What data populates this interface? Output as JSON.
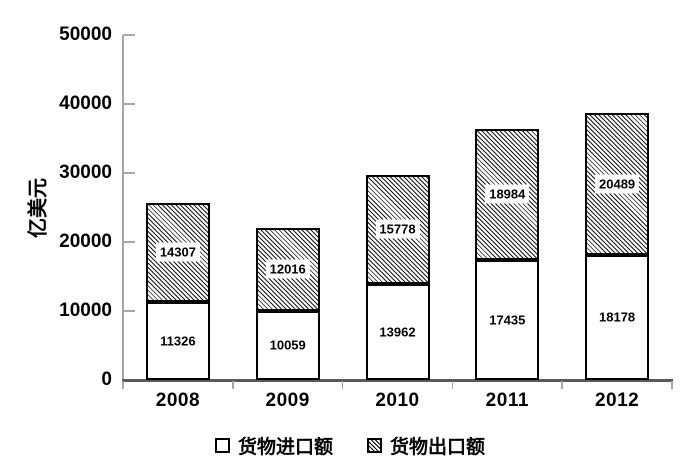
{
  "chart_data": {
    "type": "bar",
    "stacked": true,
    "title": "",
    "ylabel": "亿美元",
    "xlabel": "",
    "categories": [
      "2008",
      "2009",
      "2010",
      "2011",
      "2012"
    ],
    "series": [
      {
        "name": "货物进口额",
        "pattern": "solid-white",
        "values": [
          11326,
          10059,
          13962,
          17435,
          18178
        ]
      },
      {
        "name": "货物出口额",
        "pattern": "diagonal-hatch",
        "values": [
          14307,
          12016,
          15778,
          18984,
          20489
        ]
      }
    ],
    "ylim": [
      0,
      50000
    ],
    "yticks": [
      0,
      10000,
      20000,
      30000,
      40000,
      50000
    ],
    "ytick_labels": [
      "0",
      "10000",
      "20000",
      "30000",
      "40000",
      "50000"
    ],
    "grid": false,
    "data_labels": true,
    "legend_position": "bottom"
  },
  "colors": {
    "background": "#ffffff",
    "bar_fill": "#ffffff",
    "bar_border": "#000000",
    "hatch_line": "#1a1a1a",
    "axis_line": "#a6a6a6",
    "x_axis_line": "#595959",
    "text": "#000000"
  }
}
